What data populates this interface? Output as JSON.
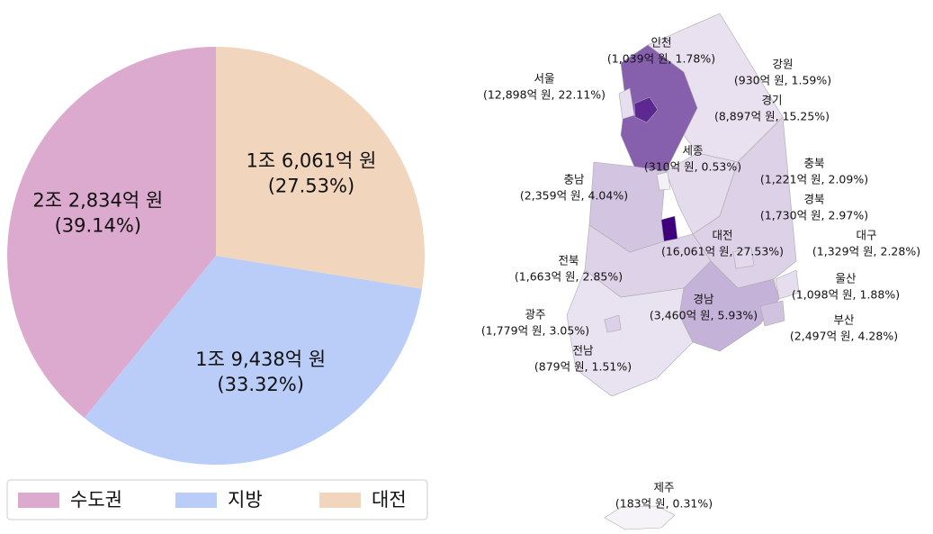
{
  "chart_data": [
    {
      "type": "pie",
      "categories": [
        "수도권",
        "지방",
        "대전"
      ],
      "values": [
        22834,
        19438,
        16061
      ],
      "value_labels": [
        "2조 2,834억 원",
        "1조 9,438억 원",
        "1조 6,061억 원"
      ],
      "percents": [
        39.14,
        33.32,
        27.53
      ],
      "percent_labels": [
        "(39.14%)",
        "(33.32%)",
        "(27.53%)"
      ],
      "colors": [
        "#dcaace",
        "#b9cdf8",
        "#f2d5bd"
      ],
      "legend": "bottom"
    },
    {
      "type": "choropleth",
      "colormap": [
        "#fcfbfd",
        "#3f007d"
      ],
      "regions": [
        {
          "name": "서울",
          "value": 12898,
          "percent": 22.11,
          "label": "(12,898억 원, 22.11%)"
        },
        {
          "name": "인천",
          "value": 1039,
          "percent": 1.78,
          "label": "(1,039억 원, 1.78%)"
        },
        {
          "name": "강원",
          "value": 930,
          "percent": 1.59,
          "label": "(930억 원, 1.59%)"
        },
        {
          "name": "경기",
          "value": 8897,
          "percent": 15.25,
          "label": "(8,897억 원, 15.25%)"
        },
        {
          "name": "세종",
          "value": 310,
          "percent": 0.53,
          "label": "(310억 원, 0.53%)"
        },
        {
          "name": "충북",
          "value": 1221,
          "percent": 2.09,
          "label": "(1,221억 원, 2.09%)"
        },
        {
          "name": "충남",
          "value": 2359,
          "percent": 4.04,
          "label": "(2,359억 원, 4.04%)"
        },
        {
          "name": "경북",
          "value": 1730,
          "percent": 2.97,
          "label": "(1,730억 원, 2.97%)"
        },
        {
          "name": "대전",
          "value": 16061,
          "percent": 27.53,
          "label": "(16,061억 원, 27.53%)"
        },
        {
          "name": "대구",
          "value": 1329,
          "percent": 2.28,
          "label": "(1,329억 원, 2.28%)"
        },
        {
          "name": "전북",
          "value": 1663,
          "percent": 2.85,
          "label": "(1,663억 원, 2.85%)"
        },
        {
          "name": "울산",
          "value": 1098,
          "percent": 1.88,
          "label": "(1,098억 원, 1.88%)"
        },
        {
          "name": "경남",
          "value": 3460,
          "percent": 5.93,
          "label": "(3,460억 원, 5.93%)"
        },
        {
          "name": "광주",
          "value": 1779,
          "percent": 3.05,
          "label": "(1,779억 원, 3.05%)"
        },
        {
          "name": "부산",
          "value": 2497,
          "percent": 4.28,
          "label": "(2,497억 원, 4.28%)"
        },
        {
          "name": "전남",
          "value": 879,
          "percent": 1.51,
          "label": "(879억 원, 1.51%)"
        },
        {
          "name": "제주",
          "value": 183,
          "percent": 0.31,
          "label": "(183억 원, 0.31%)"
        }
      ]
    }
  ]
}
